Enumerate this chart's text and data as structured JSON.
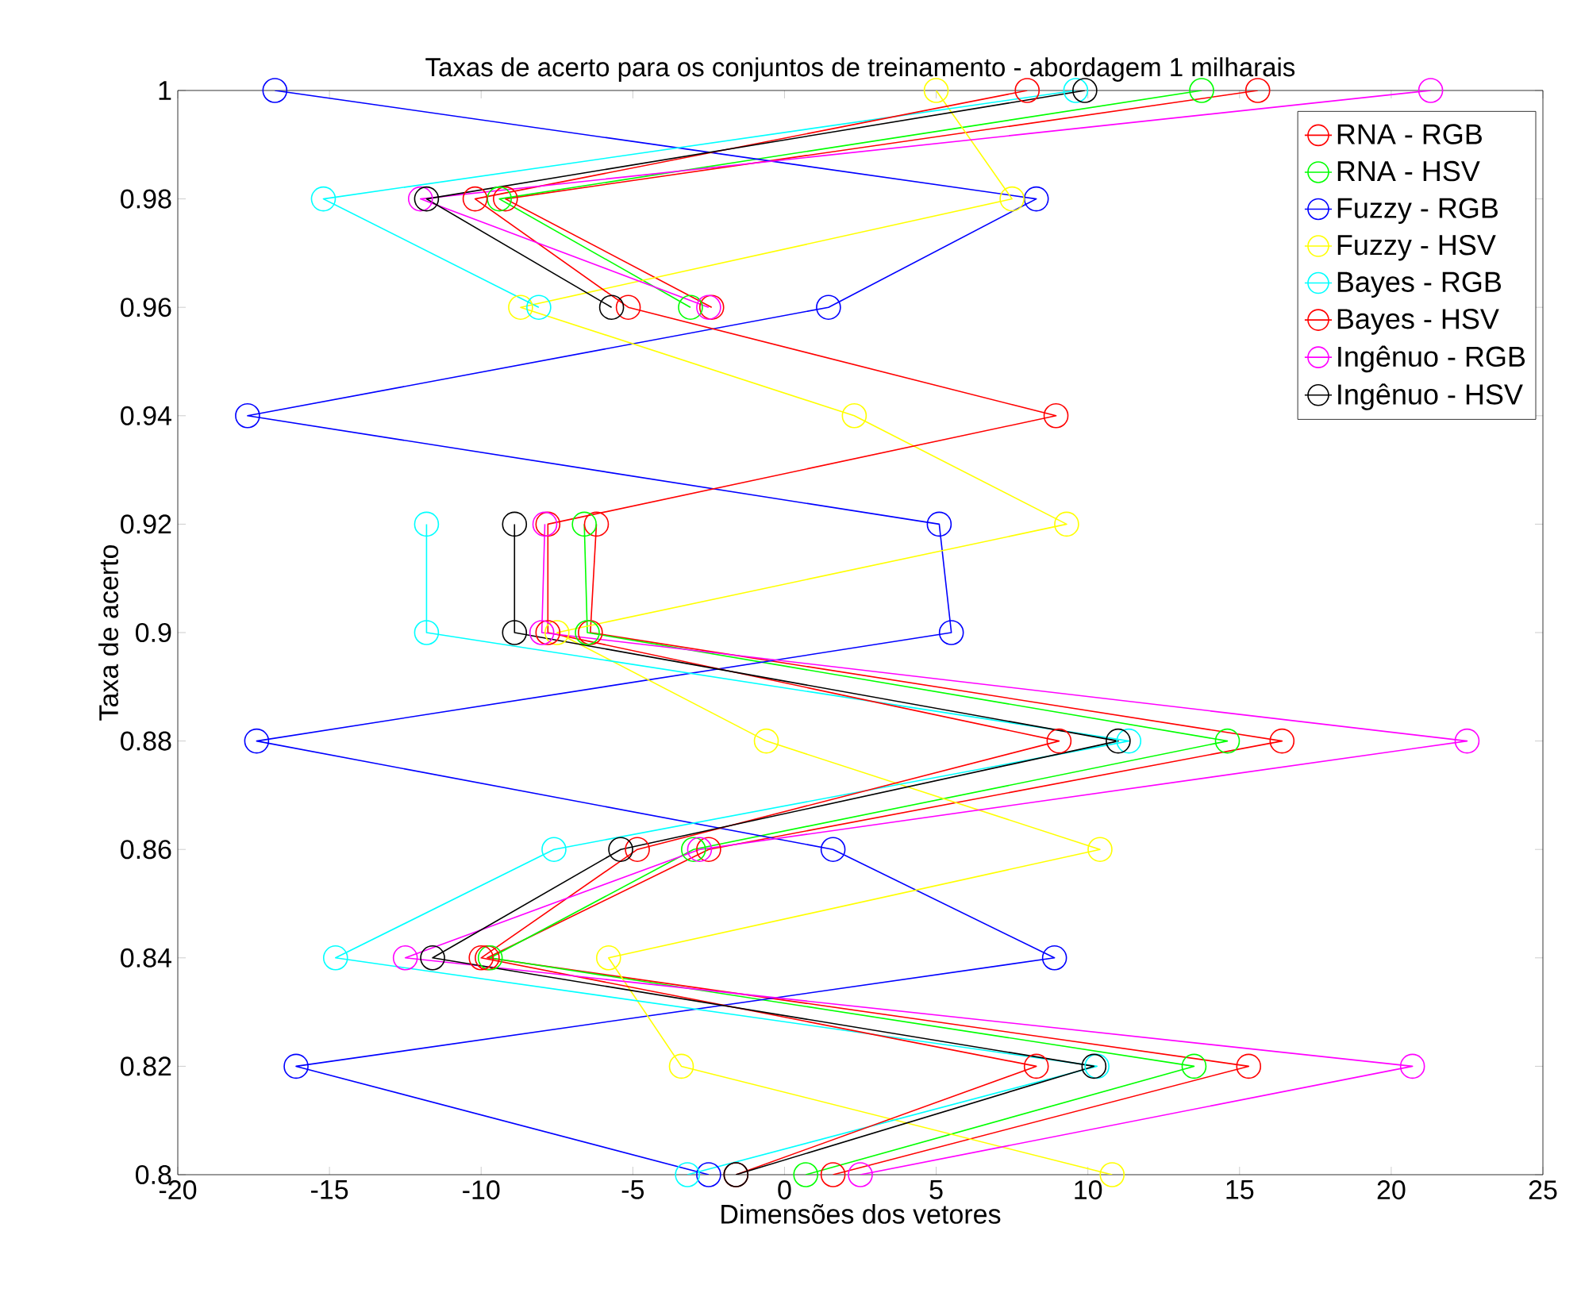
{
  "chart_data": {
    "type": "line",
    "title": "Taxas de acerto para os conjuntos de treinamento - abordagem 1 milharais",
    "xlabel": "Dimensões dos vetores",
    "ylabel": "Taxa de acerto",
    "xlim": [
      -20,
      25
    ],
    "ylim": [
      0.8,
      1
    ],
    "xticks": [
      -20,
      -15,
      -10,
      -5,
      0,
      5,
      10,
      15,
      20,
      25
    ],
    "yticks": [
      0.8,
      0.82,
      0.84,
      0.86,
      0.88,
      0.9,
      0.92,
      0.94,
      0.96,
      0.98,
      1
    ],
    "legend": "top right",
    "marker": "circle",
    "line_style": "solid",
    "series": [
      {
        "name": "RNA - RGB",
        "color": "#ff0000",
        "x": [
          1.6,
          15.3,
          -9.8,
          -2.5,
          16.4,
          -6.4,
          -6.2,
          null,
          -2.4,
          -9.2,
          15.6
        ],
        "values": [
          0.8,
          0.82,
          0.84,
          0.86,
          0.88,
          0.9,
          0.92,
          null,
          0.96,
          0.98,
          1
        ]
      },
      {
        "name": "RNA - HSV",
        "color": "#00ff00",
        "x": [
          0.7,
          13.5,
          -9.7,
          -3.0,
          14.6,
          -6.5,
          -6.6,
          null,
          -3.1,
          -9.4,
          13.75
        ],
        "values": [
          0.8,
          0.82,
          0.84,
          0.86,
          0.88,
          0.9,
          0.92,
          null,
          0.96,
          0.98,
          1
        ]
      },
      {
        "name": "Fuzzy - RGB",
        "color": "#0000ff",
        "x": [
          -2.5,
          -16.1,
          8.9,
          1.6,
          -17.4,
          5.5,
          5.1,
          -17.7,
          1.45,
          8.3,
          -16.8
        ],
        "values": [
          0.8,
          0.82,
          0.84,
          0.86,
          0.88,
          0.9,
          0.92,
          0.94,
          0.96,
          0.98,
          1
        ]
      },
      {
        "name": "Fuzzy - HSV",
        "color": "#ffff00",
        "x": [
          10.8,
          -3.4,
          -5.8,
          10.4,
          -0.6,
          -7.5,
          9.3,
          2.3,
          -8.7,
          7.5,
          5.0
        ],
        "values": [
          0.8,
          0.82,
          0.84,
          0.86,
          0.88,
          0.9,
          0.92,
          0.94,
          0.96,
          0.98,
          1
        ]
      },
      {
        "name": "Bayes - RGB",
        "color": "#00ffff",
        "x": [
          -3.2,
          10.3,
          -14.8,
          -7.6,
          11.35,
          -11.8,
          -11.8,
          null,
          -8.1,
          -15.2,
          9.6
        ],
        "values": [
          0.8,
          0.82,
          0.84,
          0.86,
          0.88,
          0.9,
          0.92,
          null,
          0.96,
          0.98,
          1
        ]
      },
      {
        "name": "Bayes - HSV",
        "color": "#ff0000",
        "x": [
          -1.6,
          8.3,
          -10.0,
          -4.85,
          9.05,
          -7.8,
          -7.8,
          8.95,
          -5.15,
          -10.2,
          8.0
        ],
        "values": [
          0.8,
          0.82,
          0.84,
          0.86,
          0.88,
          0.9,
          0.92,
          0.94,
          0.96,
          0.98,
          1
        ]
      },
      {
        "name": "Ingênuo - RGB",
        "color": "#ff00ff",
        "x": [
          2.5,
          20.7,
          -12.5,
          -2.8,
          22.5,
          -8.0,
          -7.9,
          null,
          -2.5,
          -12.0,
          21.3
        ],
        "values": [
          0.8,
          0.82,
          0.84,
          0.86,
          0.88,
          0.9,
          0.92,
          null,
          0.96,
          0.98,
          1
        ]
      },
      {
        "name": "Ingênuo - HSV",
        "color": "#000000",
        "x": [
          -1.6,
          10.2,
          -11.6,
          -5.4,
          11.0,
          -8.9,
          -8.9,
          null,
          -5.7,
          -11.8,
          9.9
        ],
        "values": [
          0.8,
          0.82,
          0.84,
          0.86,
          0.88,
          0.9,
          0.92,
          null,
          0.96,
          0.98,
          1
        ]
      }
    ]
  }
}
